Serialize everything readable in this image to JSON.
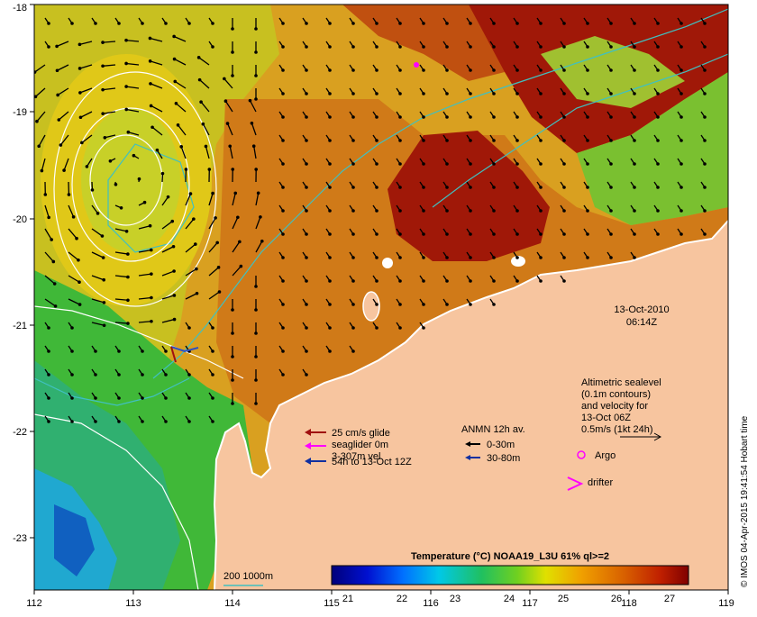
{
  "map": {
    "x_ticks": [
      "112",
      "113",
      "114",
      "115",
      "116",
      "117",
      "118",
      "119"
    ],
    "y_ticks": [
      "-18",
      "-19",
      "-20",
      "-21",
      "-22",
      "-23"
    ],
    "timestamp": {
      "date": "13-Oct-2010",
      "time": "06:14Z"
    },
    "legend": {
      "glider": [
        "25 cm/s glide",
        "seaglider 0m",
        "3-307m vel",
        "54h to 13-Oct 12Z"
      ],
      "anmn": {
        "title": "ANMN 12h av.",
        "items": [
          "0-30m",
          "30-80m"
        ]
      },
      "altimetric": [
        "Altimetric sealevel",
        "(0.1m contours)",
        "and velocity for",
        "13-Oct 06Z",
        "0.5m/s (1kt 24h)"
      ],
      "argo": "Argo",
      "drifter": "drifter",
      "bathymetry": "200  1000m"
    },
    "colorbar": {
      "title": "Temperature (°C) NOAA19_L3U 61% ql>=2",
      "ticks": [
        "21",
        "22",
        "23",
        "24",
        "25",
        "26",
        "27"
      ]
    },
    "credit": "© IMOS 04-Apr-2015 19:41:54 Hobart time"
  },
  "colors": {
    "land": "#f7c59f",
    "arrow": "#000000",
    "glider_arrow": "#a01010",
    "seaglider_arrow": "#ff00ff",
    "deep_arrow": "#1030a0",
    "argo": "#ff00ff",
    "drifter": "#ff00ff",
    "bathy_contour": "#40c0c0",
    "sealevel_contour": "#ffffff"
  }
}
